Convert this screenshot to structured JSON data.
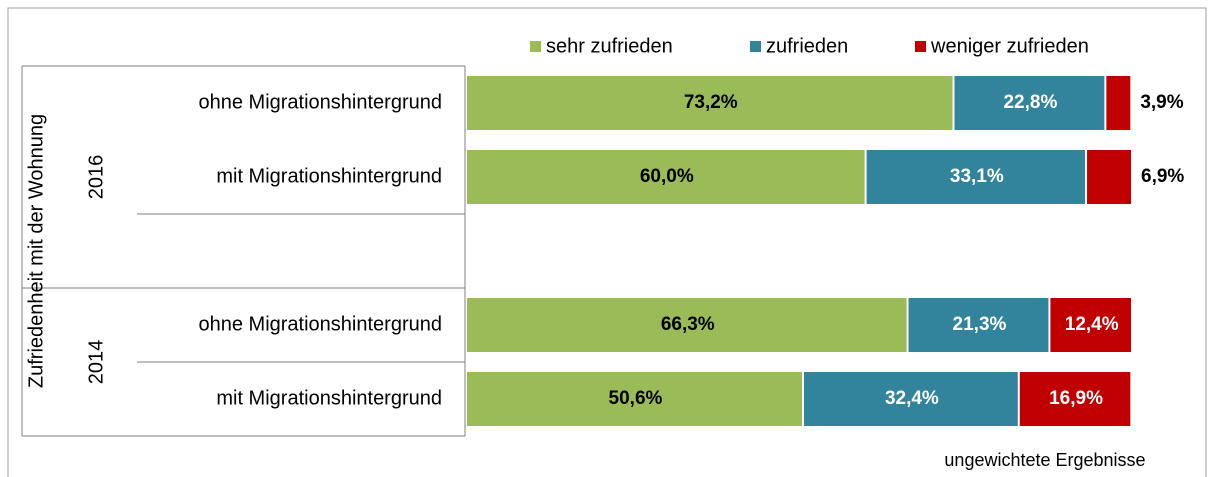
{
  "chart_data": {
    "type": "stacked-bar-horizontal",
    "axis_title": "Zufriedenheit mit der Wohnung",
    "note": "ungewichtete Ergebnisse",
    "groups": [
      "2016",
      "2014"
    ],
    "categories": [
      "ohne Migrationshintergrund",
      "mit Migrationshintergrund",
      "ohne Migrationshintergrund",
      "mit Migrationshintergrund"
    ],
    "xlim": [
      0,
      100
    ],
    "series": [
      {
        "name": "sehr zufrieden",
        "color": "#9bbb59",
        "values": [
          73.2,
          60.0,
          66.3,
          50.6
        ],
        "value_labels": [
          "73,2%",
          "60,0%",
          "66,3%",
          "50,6%"
        ]
      },
      {
        "name": "zufrieden",
        "color": "#31849b",
        "values": [
          22.8,
          33.1,
          21.3,
          32.4
        ],
        "value_labels": [
          "22,8%",
          "33,1%",
          "21,3%",
          "32,4%"
        ]
      },
      {
        "name": "weniger zufrieden",
        "color": "#c00000",
        "values": [
          3.9,
          6.9,
          12.4,
          16.9
        ],
        "value_labels": [
          "3,9%",
          "6,9%",
          "12,4%",
          "16,9%"
        ]
      }
    ],
    "legend": "top"
  }
}
